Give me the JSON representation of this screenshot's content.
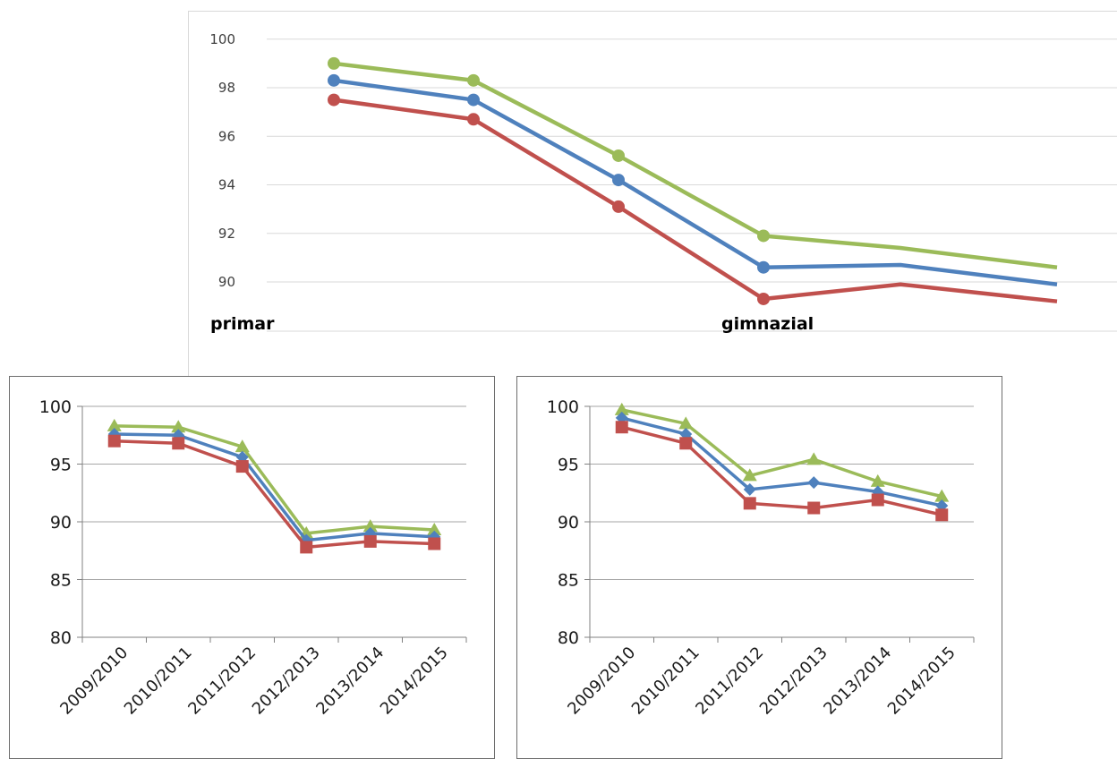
{
  "colors": {
    "blue": "#4f81bd",
    "red": "#c0504d",
    "green": "#9bbb59"
  },
  "chart_data": [
    {
      "type": "line",
      "title": "",
      "xlabel": "",
      "ylabel": "",
      "yticks": [
        "90",
        "92",
        "94",
        "96",
        "98",
        "100"
      ],
      "ylim": [
        89,
        101
      ],
      "grid": true,
      "markers": "circle",
      "section_labels": [
        "primar",
        "gimnazial"
      ],
      "x": [
        1,
        2,
        3,
        4,
        5,
        6
      ],
      "series": [
        {
          "color": "#9bbb59",
          "values": [
            99.0,
            98.3,
            95.2,
            91.9,
            91.4,
            90.6
          ],
          "marked": [
            true,
            true,
            true,
            true,
            false,
            false
          ]
        },
        {
          "color": "#4f81bd",
          "values": [
            98.3,
            97.5,
            94.2,
            90.6,
            90.7,
            89.9
          ],
          "marked": [
            true,
            true,
            true,
            true,
            false,
            false
          ]
        },
        {
          "color": "#c0504d",
          "values": [
            97.5,
            96.7,
            93.1,
            89.3,
            89.9,
            89.2
          ],
          "marked": [
            true,
            true,
            true,
            true,
            false,
            false
          ]
        }
      ]
    },
    {
      "type": "line",
      "title": "",
      "xlabel": "",
      "ylabel": "",
      "categories": [
        "2009/2010",
        "2010/2011",
        "2011/2012",
        "2012/2013",
        "2013/2014",
        "2014/2015"
      ],
      "yticks": [
        "80",
        "85",
        "90",
        "95",
        "100"
      ],
      "ylim": [
        80,
        100
      ],
      "grid": true,
      "series": [
        {
          "color": "#9bbb59",
          "marker": "triangle",
          "values": [
            98.3,
            98.2,
            96.5,
            89.0,
            89.6,
            89.3
          ]
        },
        {
          "color": "#4f81bd",
          "marker": "diamond",
          "values": [
            97.6,
            97.5,
            95.6,
            88.4,
            89.0,
            88.7
          ]
        },
        {
          "color": "#c0504d",
          "marker": "square",
          "values": [
            97.0,
            96.8,
            94.8,
            87.8,
            88.3,
            88.1
          ]
        }
      ]
    },
    {
      "type": "line",
      "title": "",
      "xlabel": "",
      "ylabel": "",
      "categories": [
        "2009/2010",
        "2010/2011",
        "2011/2012",
        "2012/2013",
        "2013/2014",
        "2014/2015"
      ],
      "yticks": [
        "80",
        "85",
        "90",
        "95",
        "100"
      ],
      "ylim": [
        80,
        100
      ],
      "grid": true,
      "series": [
        {
          "color": "#9bbb59",
          "marker": "triangle",
          "values": [
            99.7,
            98.5,
            94.0,
            95.4,
            93.5,
            92.2
          ]
        },
        {
          "color": "#4f81bd",
          "marker": "diamond",
          "values": [
            99.0,
            97.6,
            92.8,
            93.4,
            92.6,
            91.4
          ]
        },
        {
          "color": "#c0504d",
          "marker": "square",
          "values": [
            98.2,
            96.8,
            91.6,
            91.2,
            91.9,
            90.6
          ]
        }
      ]
    }
  ]
}
